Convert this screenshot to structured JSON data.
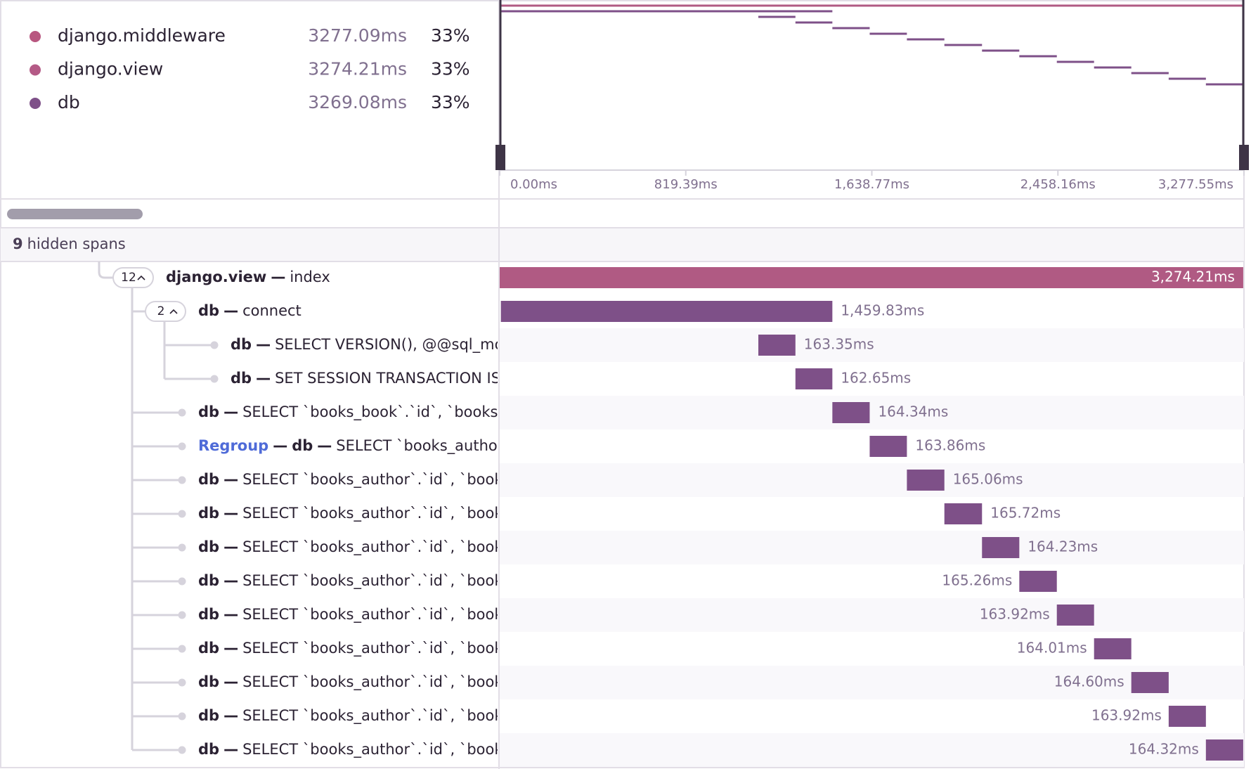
{
  "legend": [
    {
      "name": "django.middleware",
      "color": "#b8567f",
      "duration": "3277.09ms",
      "percent": "33%"
    },
    {
      "name": "django.view",
      "color": "#b45a86",
      "duration": "3274.21ms",
      "percent": "33%"
    },
    {
      "name": "db",
      "color": "#7e5088",
      "duration": "3269.08ms",
      "percent": "33%"
    }
  ],
  "minimap": {
    "ticks": [
      {
        "value": 0,
        "label": "0.00ms"
      },
      {
        "value": 819.39,
        "label": "819.39ms"
      },
      {
        "value": 1638.77,
        "label": "1,638.77ms"
      },
      {
        "value": 2458.16,
        "label": "2,458.16ms"
      },
      {
        "value": 3277.55,
        "label": "3,277.55ms"
      }
    ]
  },
  "hidden_spans": {
    "count": "9",
    "text": "hidden spans"
  },
  "separator": "—",
  "spans": [
    {
      "op": "django.view",
      "description": "index",
      "children_count": "12",
      "depth": 0,
      "color": "#b05a83",
      "duration": {
        "value": 3274.21,
        "label": "3,274.21ms"
      }
    },
    {
      "op": "db",
      "description": "connect",
      "children_count": "2",
      "depth": 1,
      "color": "#7e5088",
      "duration": {
        "value": 1459.83,
        "label": "1,459.83ms"
      }
    },
    {
      "op": "db",
      "description": "SELECT VERSION(), @@sql_mode",
      "depth": 2,
      "color": "#7e5088",
      "duration": {
        "value": 163.35,
        "label": "163.35ms"
      }
    },
    {
      "op": "db",
      "description": "SET SESSION TRANSACTION ISOLATION LEVEL",
      "depth": 2,
      "color": "#7e5088",
      "duration": {
        "value": 162.65,
        "label": "162.65ms"
      }
    },
    {
      "op": "db",
      "description": "SELECT `books_book`.`id`, `books_book`",
      "depth": 1,
      "color": "#7e5088",
      "duration": {
        "value": 164.34,
        "label": "164.34ms"
      }
    },
    {
      "link": "Regroup",
      "op": "db",
      "description": "SELECT `books_author`.`id`",
      "depth": 1,
      "color": "#7e5088",
      "duration": {
        "value": 163.86,
        "label": "163.86ms"
      }
    },
    {
      "op": "db",
      "description": "SELECT `books_author`.`id`, `books_author`",
      "depth": 1,
      "color": "#7e5088",
      "duration": {
        "value": 165.06,
        "label": "165.06ms"
      }
    },
    {
      "op": "db",
      "description": "SELECT `books_author`.`id`, `books_author`",
      "depth": 1,
      "color": "#7e5088",
      "duration": {
        "value": 165.72,
        "label": "165.72ms"
      }
    },
    {
      "op": "db",
      "description": "SELECT `books_author`.`id`, `books_author`",
      "depth": 1,
      "color": "#7e5088",
      "duration": {
        "value": 164.23,
        "label": "164.23ms"
      }
    },
    {
      "op": "db",
      "description": "SELECT `books_author`.`id`, `books_author`",
      "depth": 1,
      "color": "#7e5088",
      "duration": {
        "value": 165.26,
        "label": "165.26ms"
      }
    },
    {
      "op": "db",
      "description": "SELECT `books_author`.`id`, `books_author`",
      "depth": 1,
      "color": "#7e5088",
      "duration": {
        "value": 163.92,
        "label": "163.92ms"
      }
    },
    {
      "op": "db",
      "description": "SELECT `books_author`.`id`, `books_author`",
      "depth": 1,
      "color": "#7e5088",
      "duration": {
        "value": 164.01,
        "label": "164.01ms"
      }
    },
    {
      "op": "db",
      "description": "SELECT `books_author`.`id`, `books_author`",
      "depth": 1,
      "color": "#7e5088",
      "duration": {
        "value": 164.6,
        "label": "164.60ms"
      }
    },
    {
      "op": "db",
      "description": "SELECT `books_author`.`id`, `books_author`",
      "depth": 1,
      "color": "#7e5088",
      "duration": {
        "value": 163.92,
        "label": "163.92ms"
      }
    },
    {
      "op": "db",
      "description": "SELECT `books_author`.`id`, `books_author`",
      "depth": 1,
      "color": "#7e5088",
      "duration": {
        "value": 164.32,
        "label": "164.32ms"
      }
    }
  ]
}
